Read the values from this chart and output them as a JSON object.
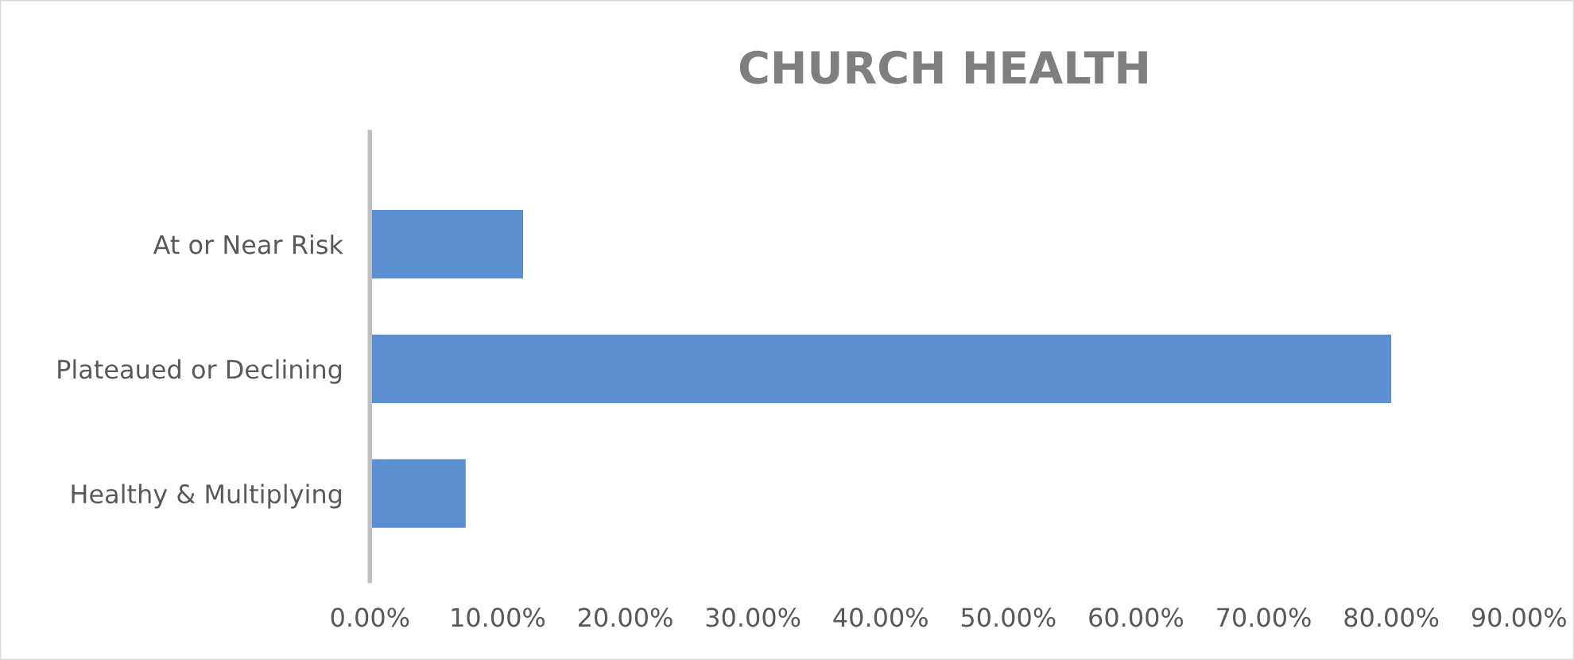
{
  "chart_data": {
    "type": "bar",
    "orientation": "horizontal",
    "title": "CHURCH HEALTH",
    "categories": [
      "At or Near Risk",
      "Plateaued or Declining",
      "Healthy & Multiplying"
    ],
    "values": [
      12,
      80,
      7.5
    ],
    "color": "#5b8fd0",
    "xlim": [
      0,
      90
    ],
    "xticks": [
      {
        "value": 0,
        "label": "0.00%"
      },
      {
        "value": 10,
        "label": "10.00%"
      },
      {
        "value": 20,
        "label": "20.00%"
      },
      {
        "value": 30,
        "label": "30.00%"
      },
      {
        "value": 40,
        "label": "40.00%"
      },
      {
        "value": 50,
        "label": "50.00%"
      },
      {
        "value": 60,
        "label": "60.00%"
      },
      {
        "value": 70,
        "label": "70.00%"
      },
      {
        "value": 80,
        "label": "80.00%"
      },
      {
        "value": 90,
        "label": "90.00%"
      }
    ],
    "grid": false,
    "legend": false
  }
}
